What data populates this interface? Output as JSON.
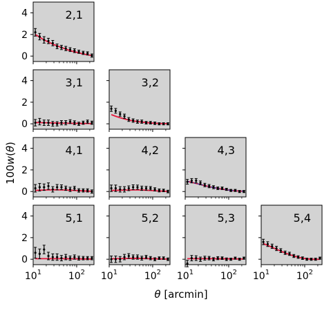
{
  "chart_data": {
    "type": "scatter",
    "description_units": "theta in arcmin (log x axis), y = 100 w(theta)",
    "xscale": "log",
    "xlim": [
      10,
      250
    ],
    "ylim": [
      -0.5,
      5
    ],
    "yticks": [
      0,
      2,
      4
    ],
    "ytick_labels": [
      "0",
      "2",
      "4"
    ],
    "xtick_base": "10",
    "xtick_exponents": [
      "1",
      "2"
    ],
    "ylabel": "100w(θ)",
    "ylabel_parts": {
      "prefix": "100",
      "italic": "w",
      "open": "(",
      "theta": "θ",
      "close": ")"
    },
    "xlabel": "θ [arcmin]",
    "xlabel_parts": {
      "theta": "θ",
      "unit": " [arcmin]"
    },
    "panel_background": "#d3d3d3",
    "model_color": "#e8173c",
    "model_color_alt": "#1f3fbf",
    "point_color": "#000000",
    "theta": [
      11.2,
      14.1,
      17.8,
      22.4,
      28.2,
      35.5,
      44.7,
      56.2,
      70.8,
      89.1,
      112.2,
      141.3,
      177.8,
      223.9
    ],
    "panels": [
      {
        "label": "2,1",
        "row": 0,
        "col": 0,
        "values": [
          2.2,
          1.8,
          1.5,
          1.4,
          1.2,
          0.9,
          0.8,
          0.7,
          0.6,
          0.5,
          0.4,
          0.3,
          0.25,
          0.05
        ],
        "errors": [
          0.35,
          0.3,
          0.3,
          0.25,
          0.25,
          0.22,
          0.2,
          0.2,
          0.18,
          0.18,
          0.15,
          0.15,
          0.15,
          0.15
        ],
        "model": [
          2.0,
          1.75,
          1.5,
          1.3,
          1.1,
          0.95,
          0.8,
          0.65,
          0.5,
          0.4,
          0.3,
          0.2,
          0.12,
          0.05
        ]
      },
      {
        "label": "3,1",
        "row": 1,
        "col": 0,
        "values": [
          0.1,
          0.2,
          0.1,
          0.1,
          0.0,
          0.0,
          0.1,
          0.1,
          0.2,
          0.1,
          0.0,
          0.1,
          0.2,
          0.1
        ],
        "errors": [
          0.3,
          0.3,
          0.25,
          0.25,
          0.22,
          0.2,
          0.2,
          0.2,
          0.18,
          0.18,
          0.15,
          0.15,
          0.15,
          0.15
        ],
        "model": [
          0.12,
          0.11,
          0.1,
          0.09,
          0.08,
          0.07,
          0.06,
          0.05,
          0.05,
          0.04,
          0.04,
          0.03,
          0.03,
          0.02
        ]
      },
      {
        "label": "3,2",
        "row": 1,
        "col": 1,
        "values": [
          1.4,
          1.2,
          0.9,
          0.7,
          0.4,
          0.3,
          0.2,
          0.2,
          0.1,
          0.1,
          0.05,
          0.0,
          0.0,
          0.0
        ],
        "errors": [
          0.25,
          0.22,
          0.2,
          0.2,
          0.18,
          0.16,
          0.15,
          0.15,
          0.12,
          0.12,
          0.12,
          0.1,
          0.1,
          0.1
        ],
        "model": [
          0.85,
          0.7,
          0.56,
          0.45,
          0.35,
          0.27,
          0.21,
          0.16,
          0.12,
          0.08,
          0.05,
          0.03,
          0.02,
          0.01
        ]
      },
      {
        "label": "4,1",
        "row": 2,
        "col": 0,
        "values": [
          0.3,
          0.4,
          0.4,
          0.5,
          0.2,
          0.4,
          0.4,
          0.3,
          0.2,
          0.3,
          0.1,
          0.1,
          0.1,
          0.0
        ],
        "errors": [
          0.35,
          0.35,
          0.3,
          0.3,
          0.25,
          0.25,
          0.22,
          0.2,
          0.2,
          0.18,
          0.16,
          0.15,
          0.15,
          0.15
        ],
        "model": [
          0.1,
          0.12,
          0.14,
          0.15,
          0.16,
          0.16,
          0.15,
          0.14,
          0.12,
          0.1,
          0.08,
          0.06,
          0.04,
          0.02
        ]
      },
      {
        "label": "4,2",
        "row": 2,
        "col": 1,
        "values": [
          0.3,
          0.3,
          0.2,
          0.2,
          0.3,
          0.4,
          0.4,
          0.3,
          0.3,
          0.3,
          0.2,
          0.1,
          0.1,
          0.0
        ],
        "errors": [
          0.3,
          0.3,
          0.25,
          0.25,
          0.22,
          0.22,
          0.2,
          0.2,
          0.18,
          0.16,
          0.15,
          0.14,
          0.12,
          0.12
        ],
        "model": [
          0.1,
          0.11,
          0.12,
          0.13,
          0.14,
          0.15,
          0.15,
          0.14,
          0.12,
          0.1,
          0.07,
          0.05,
          0.03,
          0.01
        ]
      },
      {
        "label": "4,3",
        "row": 2,
        "col": 2,
        "values": [
          0.9,
          1.0,
          1.0,
          0.8,
          0.6,
          0.5,
          0.4,
          0.3,
          0.3,
          0.2,
          0.1,
          0.1,
          0.0,
          0.0
        ],
        "errors": [
          0.22,
          0.2,
          0.2,
          0.18,
          0.16,
          0.15,
          0.14,
          0.12,
          0.12,
          0.1,
          0.1,
          0.1,
          0.1,
          0.1
        ],
        "model": [
          0.95,
          0.85,
          0.75,
          0.65,
          0.55,
          0.45,
          0.37,
          0.29,
          0.22,
          0.16,
          0.11,
          0.07,
          0.04,
          0.02
        ]
      },
      {
        "label": "5,1",
        "row": 3,
        "col": 0,
        "values": [
          0.6,
          0.5,
          0.9,
          0.3,
          0.2,
          0.2,
          0.1,
          0.2,
          0.1,
          0.2,
          0.1,
          0.1,
          0.1,
          0.1
        ],
        "errors": [
          0.5,
          0.45,
          0.4,
          0.35,
          0.3,
          0.3,
          0.25,
          0.25,
          0.2,
          0.2,
          0.18,
          0.16,
          0.15,
          0.15
        ],
        "model": [
          0.05,
          0.05,
          0.05,
          0.05,
          0.05,
          0.05,
          0.05,
          0.05,
          0.04,
          0.04,
          0.03,
          0.03,
          0.02,
          0.02
        ]
      },
      {
        "label": "5,2",
        "row": 3,
        "col": 1,
        "values": [
          0.0,
          0.0,
          0.0,
          0.2,
          0.3,
          0.2,
          0.2,
          0.1,
          0.2,
          0.1,
          0.0,
          0.1,
          0.1,
          0.0
        ],
        "errors": [
          0.3,
          0.3,
          0.25,
          0.25,
          0.22,
          0.2,
          0.2,
          0.18,
          0.16,
          0.15,
          0.14,
          0.12,
          0.12,
          0.12
        ],
        "model": [
          0.04,
          0.05,
          0.06,
          0.07,
          0.08,
          0.08,
          0.08,
          0.07,
          0.06,
          0.05,
          0.04,
          0.03,
          0.02,
          0.01
        ]
      },
      {
        "label": "5,3",
        "row": 3,
        "col": 2,
        "values": [
          -0.4,
          0.1,
          0.1,
          0.0,
          0.1,
          0.1,
          0.0,
          0.1,
          0.1,
          0.0,
          0.0,
          0.1,
          0.0,
          0.1
        ],
        "errors": [
          0.3,
          0.25,
          0.22,
          0.2,
          0.18,
          0.16,
          0.15,
          0.14,
          0.12,
          0.12,
          0.1,
          0.1,
          0.1,
          0.1
        ],
        "model": [
          0.05,
          0.05,
          0.05,
          0.05,
          0.05,
          0.05,
          0.05,
          0.04,
          0.04,
          0.04,
          0.03,
          0.03,
          0.02,
          0.02
        ]
      },
      {
        "label": "5,4",
        "row": 3,
        "col": 3,
        "values": [
          1.6,
          1.4,
          1.2,
          1.0,
          0.8,
          0.6,
          0.5,
          0.3,
          0.2,
          0.1,
          0.0,
          0.0,
          0.0,
          0.1
        ],
        "errors": [
          0.25,
          0.22,
          0.2,
          0.2,
          0.18,
          0.16,
          0.15,
          0.14,
          0.12,
          0.12,
          0.1,
          0.1,
          0.1,
          0.1
        ],
        "model": [
          1.45,
          1.28,
          1.1,
          0.92,
          0.75,
          0.58,
          0.43,
          0.3,
          0.19,
          0.1,
          0.04,
          0.0,
          -0.01,
          0.0
        ]
      }
    ]
  }
}
